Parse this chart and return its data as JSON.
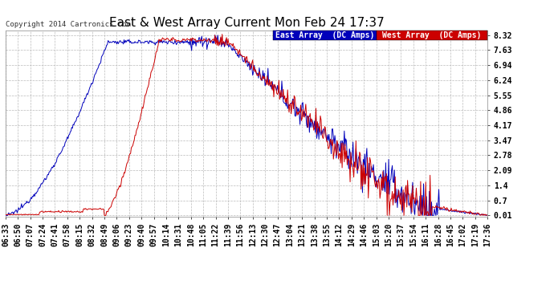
{
  "title": "East & West Array Current Mon Feb 24 17:37",
  "copyright": "Copyright 2014 Cartronics.com",
  "legend_east": "East Array  (DC Amps)",
  "legend_west": "West Array  (DC Amps)",
  "east_color": "#0000bb",
  "west_color": "#cc0000",
  "legend_east_bg": "#0000bb",
  "legend_west_bg": "#cc0000",
  "yticks": [
    0.01,
    0.7,
    1.4,
    2.09,
    2.78,
    3.47,
    4.17,
    4.86,
    5.55,
    6.24,
    6.94,
    7.63,
    8.32
  ],
  "ylim": [
    -0.05,
    8.55
  ],
  "background_color": "#ffffff",
  "grid_color": "#bbbbbb",
  "title_fontsize": 11,
  "tick_fontsize": 7,
  "copyright_fontsize": 6.5,
  "legend_fontsize": 7
}
